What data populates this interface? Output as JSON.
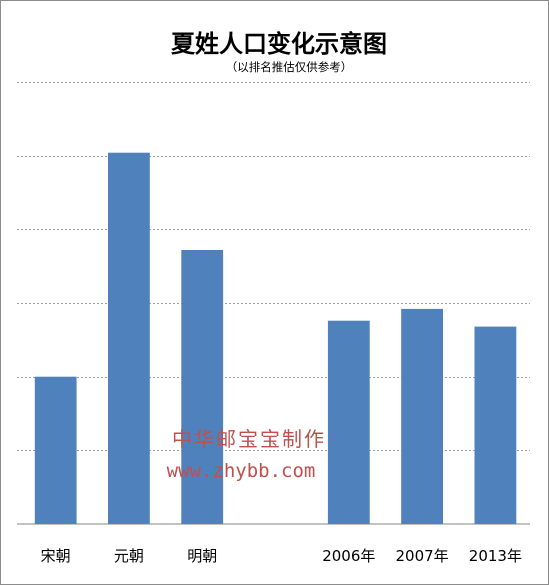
{
  "chart_data": {
    "type": "bar",
    "title": "夏姓人口变化示意图",
    "subtitle": "（以排名推估仅供参考）",
    "categories": [
      "宋朝",
      "元朝",
      "明朝",
      "",
      "2006年",
      "2007年",
      "2013年"
    ],
    "values": [
      25,
      63,
      46.5,
      null,
      34.5,
      36.5,
      33.5
    ],
    "ylim": [
      0,
      75
    ],
    "grid": true,
    "bar_color": "#4f81bd",
    "watermark": {
      "line1": "中华邮宝宝制作",
      "line2": "www.zhybb.com",
      "color": "#c0504d"
    }
  }
}
